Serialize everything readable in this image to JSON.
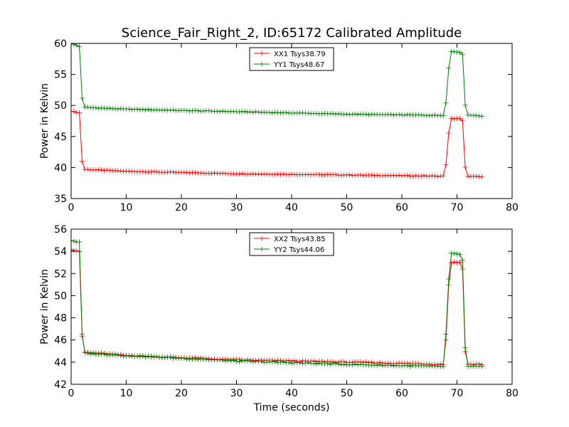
{
  "figure": {
    "title": "Science_Fair_Right_2, ID:65172 Calibrated Amplitude"
  },
  "chart_data": [
    {
      "type": "line",
      "title": "Science_Fair_Right_2, ID:65172 Calibrated Amplitude",
      "xlabel": "",
      "ylabel": "Power in Kelvin",
      "xlim": [
        0,
        80
      ],
      "ylim": [
        35,
        60
      ],
      "xticks": [
        "0",
        "10",
        "20",
        "30",
        "40",
        "50",
        "60",
        "70",
        "80"
      ],
      "yticks": [
        "35",
        "40",
        "45",
        "50",
        "55",
        "60"
      ],
      "grid": false,
      "legend_position": "top-center",
      "x": {
        "start": 0,
        "end": 74.5,
        "step": 0.5
      },
      "series": [
        {
          "name": "XX1 Tsys38.79",
          "color": "#ff0000",
          "profile": [
            [
              0,
              49.1
            ],
            [
              1.5,
              48.8
            ],
            [
              2.0,
              41.0
            ],
            [
              2.5,
              39.7
            ],
            [
              10,
              39.4
            ],
            [
              30,
              39.0
            ],
            [
              50,
              38.8
            ],
            [
              67.5,
              38.6
            ],
            [
              68.0,
              40.5
            ],
            [
              68.5,
              45.5
            ],
            [
              69.0,
              47.9
            ],
            [
              70.5,
              47.9
            ],
            [
              71.0,
              47.5
            ],
            [
              71.5,
              40.0
            ],
            [
              72.0,
              38.6
            ],
            [
              74.5,
              38.5
            ]
          ]
        },
        {
          "name": "YY1 Tsys48.67",
          "color": "#008000",
          "profile": [
            [
              0,
              60.0
            ],
            [
              1.5,
              59.5
            ],
            [
              2.0,
              51.2
            ],
            [
              2.5,
              49.7
            ],
            [
              10,
              49.4
            ],
            [
              30,
              49.0
            ],
            [
              50,
              48.6
            ],
            [
              67.5,
              48.4
            ],
            [
              68.0,
              50.5
            ],
            [
              68.5,
              56.0
            ],
            [
              69.0,
              58.7
            ],
            [
              70.5,
              58.6
            ],
            [
              71.0,
              58.3
            ],
            [
              71.5,
              50.0
            ],
            [
              72.0,
              48.5
            ],
            [
              74.5,
              48.3
            ]
          ]
        }
      ]
    },
    {
      "type": "line",
      "title": "",
      "xlabel": "Time (seconds)",
      "ylabel": "Power in Kelvin",
      "xlim": [
        0,
        80
      ],
      "ylim": [
        42,
        56
      ],
      "xticks": [
        "0",
        "10",
        "20",
        "30",
        "40",
        "50",
        "60",
        "70",
        "80"
      ],
      "yticks": [
        "42",
        "44",
        "46",
        "48",
        "50",
        "52",
        "54",
        "56"
      ],
      "grid": false,
      "legend_position": "top-center",
      "x": {
        "start": 0,
        "end": 74.5,
        "step": 0.5
      },
      "series": [
        {
          "name": "XX2 Tsys43.85",
          "color": "#ff0000",
          "profile": [
            [
              0,
              54.2
            ],
            [
              1.5,
              54.0
            ],
            [
              2.0,
              46.3
            ],
            [
              2.5,
              44.9
            ],
            [
              10,
              44.6
            ],
            [
              30,
              44.2
            ],
            [
              50,
              44.0
            ],
            [
              67.5,
              43.8
            ],
            [
              68.0,
              46.0
            ],
            [
              68.5,
              51.0
            ],
            [
              69.0,
              53.0
            ],
            [
              70.5,
              53.0
            ],
            [
              71.0,
              52.4
            ],
            [
              71.5,
              45.0
            ],
            [
              72.0,
              43.8
            ],
            [
              74.5,
              43.8
            ]
          ]
        },
        {
          "name": "YY2 Tsys44.06",
          "color": "#008000",
          "profile": [
            [
              0,
              55.0
            ],
            [
              1.5,
              54.8
            ],
            [
              2.0,
              46.5
            ],
            [
              2.5,
              44.8
            ],
            [
              10,
              44.6
            ],
            [
              30,
              44.1
            ],
            [
              50,
              43.8
            ],
            [
              67.5,
              43.6
            ],
            [
              68.0,
              46.5
            ],
            [
              68.5,
              51.5
            ],
            [
              69.0,
              53.8
            ],
            [
              70.5,
              53.7
            ],
            [
              71.0,
              53.2
            ],
            [
              71.5,
              45.3
            ],
            [
              72.0,
              43.6
            ],
            [
              74.5,
              43.6
            ]
          ]
        }
      ]
    }
  ]
}
